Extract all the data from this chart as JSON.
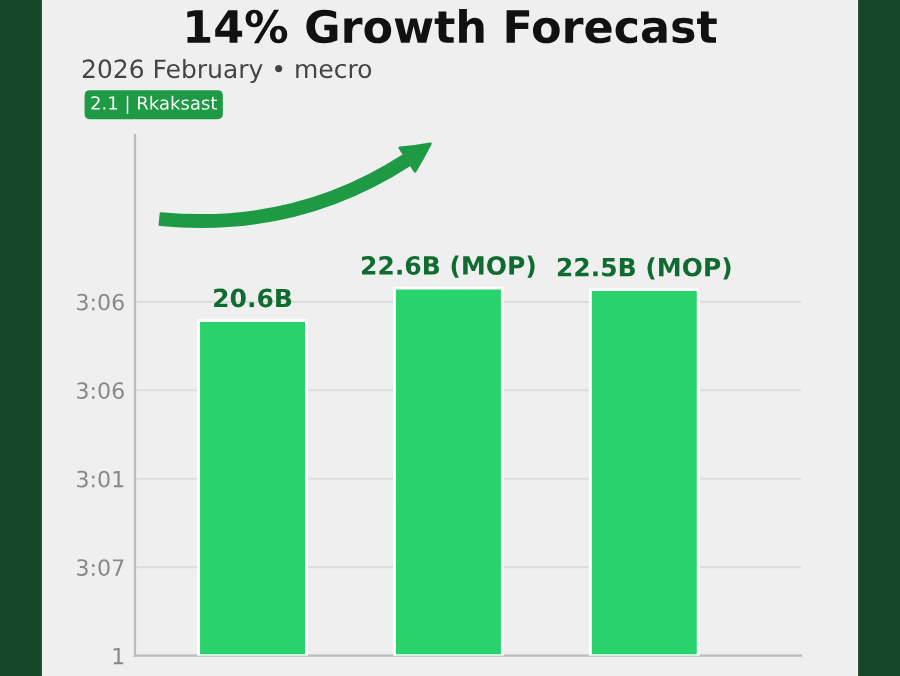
{
  "chart_data": {
    "type": "bar",
    "title": "14% Growth Forecast",
    "subtitle": "2026 February • mecro",
    "annotations": [
      "2.1 | Rkaksast",
      "1",
      "3:07",
      "3:01",
      "3:06",
      "3:06"
    ],
    "categories": [
      null,
      null,
      null
    ],
    "values": [
      20.6,
      22.6,
      22.5
    ],
    "value_labels": [
      "20.6B",
      "22.6B (MOP)",
      "22.5B (MOP)"
    ],
    "color": "#27d36a",
    "ylim": [
      0,
      32
    ],
    "grid": "y"
  }
}
